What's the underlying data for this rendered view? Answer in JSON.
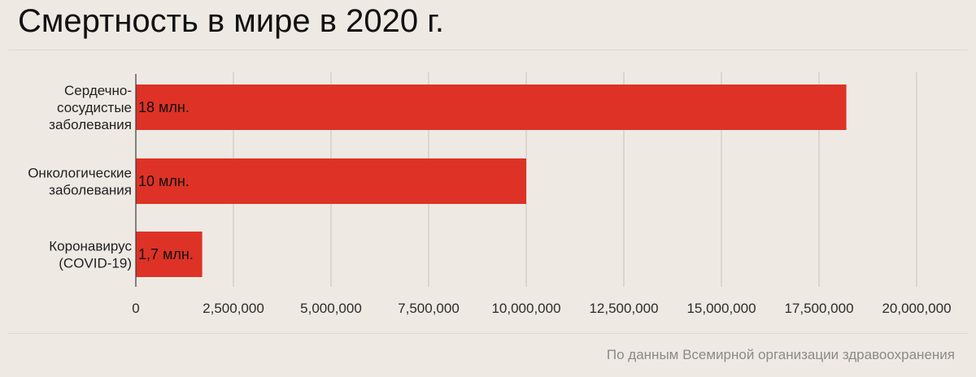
{
  "title": "Смертность в мире в 2020 г.",
  "source": "По данным Всемирной организации здравоохранения",
  "colors": {
    "bar": "#de3226",
    "grid": "#c9c3bd",
    "background": "#efe9e4"
  },
  "chart_data": {
    "type": "bar",
    "orientation": "horizontal",
    "categories": [
      [
        "Сердечно-",
        "сосудистые",
        "заболевания"
      ],
      [
        "Онкологические",
        "заболевания"
      ],
      [
        "Коронавирус",
        "(COVID-19)"
      ]
    ],
    "values": [
      18200000,
      10000000,
      1700000
    ],
    "data_labels": [
      "18 млн.",
      "10 млн.",
      "1,7 млн."
    ],
    "xlim": [
      0,
      20000000
    ],
    "ticks": [
      0,
      2500000,
      5000000,
      7500000,
      10000000,
      12500000,
      15000000,
      17500000,
      20000000
    ],
    "tick_labels": [
      "0",
      "2,500,000",
      "5,000,000",
      "7,500,000",
      "10,000,000",
      "12,500,000",
      "15,000,000",
      "17,500,000",
      "20,000,000"
    ],
    "grid": true,
    "legend": "none"
  }
}
